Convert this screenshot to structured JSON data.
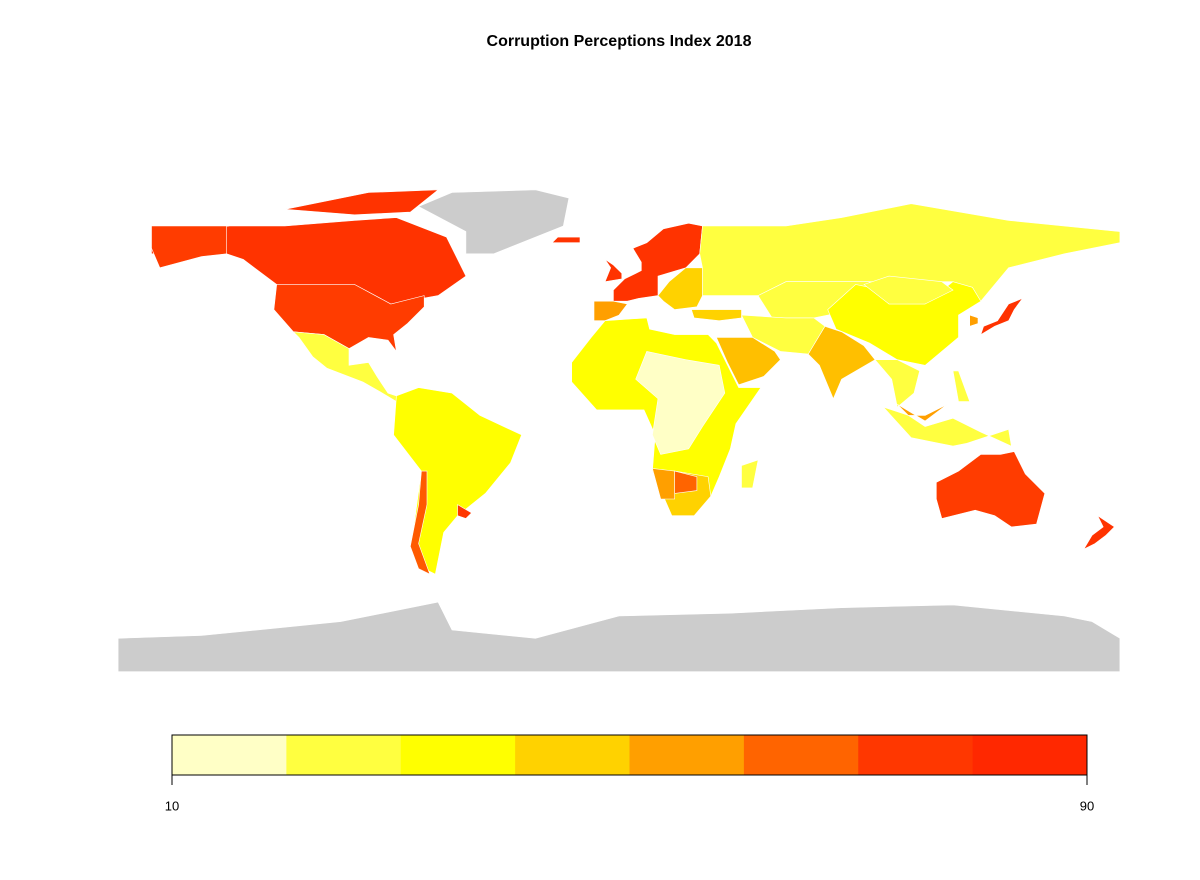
{
  "chart_data": {
    "type": "choropleth",
    "title": "Corruption Perceptions Index 2018",
    "colors": [
      "#FFFFC6",
      "#FFFF40",
      "#FFFF00",
      "#FFD200",
      "#FF9F00",
      "#FF6400",
      "#FF3700",
      "#FF2800"
    ],
    "xlim": [
      10,
      90
    ],
    "xticks": [
      10,
      90
    ]
  }
}
